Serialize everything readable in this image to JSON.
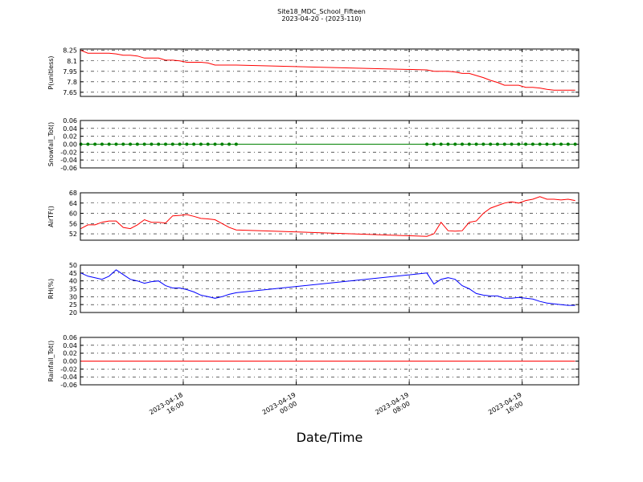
{
  "chart_data": {
    "type": "line",
    "title": "Site18_MDC_School_Fifteen",
    "subtitle": "2023-04-20 - (2023-110)",
    "xlabel": "Date/Time",
    "grid": true,
    "x": [
      "2023-04-18 08:45",
      "2023-04-18 09:15",
      "2023-04-18 09:45",
      "2023-04-18 10:15",
      "2023-04-18 10:45",
      "2023-04-18 11:15",
      "2023-04-18 11:45",
      "2023-04-18 12:15",
      "2023-04-18 12:45",
      "2023-04-18 13:15",
      "2023-04-18 13:45",
      "2023-04-18 14:15",
      "2023-04-18 14:45",
      "2023-04-18 15:15",
      "2023-04-18 15:45",
      "2023-04-18 16:15",
      "2023-04-18 16:45",
      "2023-04-18 17:15",
      "2023-04-18 17:45",
      "2023-04-18 18:15",
      "2023-04-18 18:45",
      "2023-04-18 19:15",
      "2023-04-18 19:45",
      "2023-04-19 09:15",
      "2023-04-19 09:45",
      "2023-04-19 10:15",
      "2023-04-19 10:45",
      "2023-04-19 11:15",
      "2023-04-19 11:45",
      "2023-04-19 12:15",
      "2023-04-19 12:45",
      "2023-04-19 13:15",
      "2023-04-19 13:45",
      "2023-04-19 14:15",
      "2023-04-19 14:45",
      "2023-04-19 15:15",
      "2023-04-19 15:45",
      "2023-04-19 16:15",
      "2023-04-19 16:45",
      "2023-04-19 17:15",
      "2023-04-19 17:45",
      "2023-04-19 18:15",
      "2023-04-19 18:45",
      "2023-04-19 19:15",
      "2023-04-19 19:45"
    ],
    "xlim": [
      "2023-04-18 08:43",
      "2023-04-19 20:00"
    ],
    "xticks": [
      "2023-04-18 16:00",
      "2023-04-19 00:00",
      "2023-04-19 08:00",
      "2023-04-19 16:00"
    ],
    "panels": [
      {
        "ylabel": "P(unitless)",
        "color": "#ff0000",
        "markers": false,
        "ylim": [
          7.59,
          8.27
        ],
        "yticks": [
          8.25,
          8.1,
          7.95,
          7.8,
          7.65
        ],
        "values": [
          8.25,
          8.21,
          8.21,
          8.21,
          8.21,
          8.2,
          8.18,
          8.18,
          8.17,
          8.14,
          8.14,
          8.14,
          8.11,
          8.11,
          8.1,
          8.08,
          8.08,
          8.08,
          8.07,
          8.04,
          8.04,
          8.04,
          8.04,
          7.97,
          7.95,
          7.95,
          7.95,
          7.94,
          7.92,
          7.92,
          7.89,
          7.86,
          7.82,
          7.79,
          7.75,
          7.75,
          7.75,
          7.72,
          7.72,
          7.71,
          7.69,
          7.68,
          7.68,
          7.68,
          7.68
        ]
      },
      {
        "ylabel": "Snowfall_Tot()",
        "color": "#008000",
        "markers": true,
        "ylim": [
          -0.06,
          0.06
        ],
        "yticks": [
          0.06,
          0.04,
          0.02,
          {
            "value": 0,
            "label": "0.00"
          },
          -0.02,
          -0.04,
          -0.06
        ],
        "values": [
          0,
          0,
          0,
          0,
          0,
          0,
          0,
          0,
          0,
          0,
          0,
          0,
          0,
          0,
          0,
          0,
          0,
          0,
          0,
          0,
          0,
          0,
          0,
          0,
          0,
          0,
          0,
          0,
          0,
          0,
          0,
          0,
          0,
          0,
          0,
          0,
          0,
          0,
          0,
          0,
          0,
          0,
          0,
          0,
          0
        ]
      },
      {
        "ylabel": "AirTF()",
        "color": "#ff0000",
        "markers": false,
        "ylim": [
          49.5,
          68
        ],
        "yticks": [
          68,
          64,
          60,
          56,
          52
        ],
        "values": [
          54,
          55.5,
          55.5,
          56.5,
          57,
          57,
          54.5,
          54,
          55.5,
          57.5,
          56.5,
          56.5,
          56.2,
          59,
          59.2,
          59.5,
          58.8,
          58,
          57.8,
          57.5,
          56,
          54.5,
          53.5,
          51,
          52,
          56.5,
          53.2,
          53,
          53.2,
          56.5,
          57,
          60,
          62,
          63,
          64,
          64.5,
          64,
          65,
          65.5,
          66.5,
          65.5,
          65.5,
          65.2,
          65.5,
          65
        ]
      },
      {
        "ylabel": "RH(%)",
        "color": "#0000ff",
        "markers": false,
        "ylim": [
          20,
          50
        ],
        "yticks": [
          50,
          45,
          40,
          35,
          30,
          25,
          20
        ],
        "values": [
          45,
          43,
          42,
          41,
          43,
          47,
          44,
          41,
          40,
          38.5,
          39.5,
          40,
          37,
          35.5,
          35.5,
          34.5,
          33,
          31,
          30,
          29,
          30,
          31.5,
          32.5,
          45,
          38,
          41,
          42,
          41,
          37,
          35,
          32,
          31,
          30.5,
          30.5,
          29,
          29,
          29.5,
          29,
          28.5,
          27,
          26,
          25.5,
          25,
          24.5,
          24.5
        ]
      },
      {
        "ylabel": "Rainfall_Tot()",
        "color": "#ff0000",
        "markers": false,
        "ylim": [
          -0.06,
          0.06
        ],
        "yticks": [
          0.06,
          0.04,
          0.02,
          {
            "value": 0,
            "label": "0.00"
          },
          -0.02,
          -0.04,
          -0.06
        ],
        "values": [
          0,
          0,
          0,
          0,
          0,
          0,
          0,
          0,
          0,
          0,
          0,
          0,
          0,
          0,
          0,
          0,
          0,
          0,
          0,
          0,
          0,
          0,
          0,
          0,
          0,
          0,
          0,
          0,
          0,
          0,
          0,
          0,
          0,
          0,
          0,
          0,
          0,
          0,
          0,
          0,
          0,
          0,
          0,
          0,
          0
        ]
      }
    ]
  }
}
